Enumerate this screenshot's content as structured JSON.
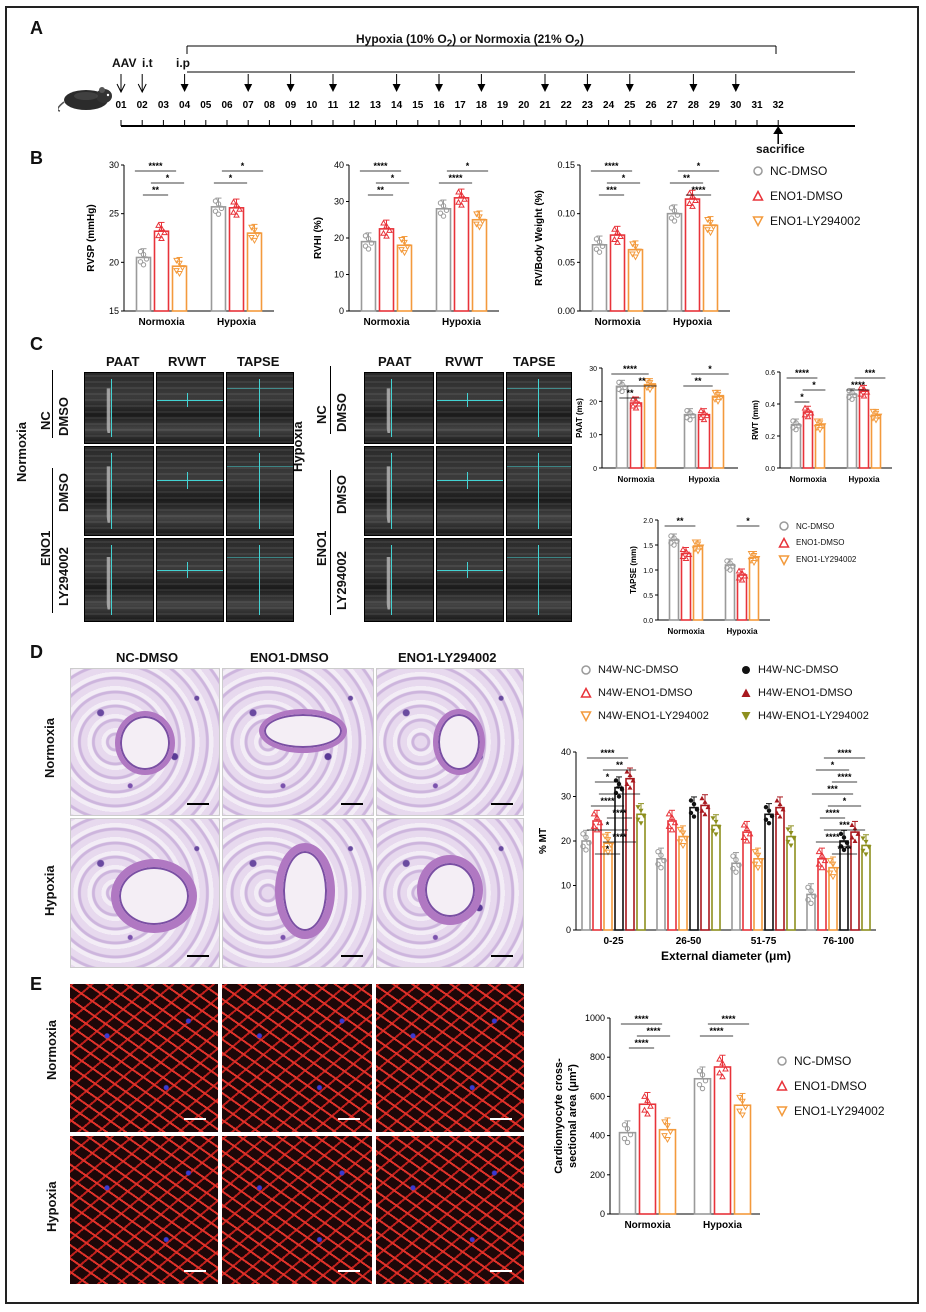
{
  "panels": {
    "A": "A",
    "B": "B",
    "C": "C",
    "D": "D",
    "E": "E"
  },
  "timeline": {
    "title": "Hypoxia (10% O",
    "title_sub1": "2",
    "title_mid": ") or Normoxia (21% O",
    "title_sub2": "2",
    "title_end": ")",
    "aav": "AAV",
    "it": "i.t",
    "ip": "i.p",
    "sacrifice": "sacrifice",
    "days": [
      "01",
      "02",
      "03",
      "04",
      "05",
      "06",
      "07",
      "08",
      "09",
      "10",
      "11",
      "12",
      "13",
      "14",
      "15",
      "16",
      "17",
      "18",
      "19",
      "20",
      "21",
      "22",
      "23",
      "24",
      "25",
      "26",
      "27",
      "28",
      "29",
      "30",
      "31",
      "32"
    ],
    "injection_days": [
      "04",
      "07",
      "09",
      "11",
      "14",
      "16",
      "18",
      "21",
      "23",
      "25",
      "28",
      "30"
    ]
  },
  "legend3": [
    "NC-DMSO",
    "ENO1-DMSO",
    "ENO1-LY294002"
  ],
  "legend6": [
    "N4W-NC-DMSO",
    "H4W-NC-DMSO",
    "N4W-ENO1-DMSO",
    "H4W-ENO1-DMSO",
    "N4W-ENO1-LY294002",
    "H4W-ENO1-LY294002"
  ],
  "colors": {
    "nc": "#9a9a9a",
    "eno1": "#e8333a",
    "ly": "#f39a3c",
    "h_nc": "#111111",
    "h_eno1": "#a8181e",
    "h_ly": "#8d8f1e"
  },
  "panelC": {
    "cols": [
      "PAAT",
      "RVWT",
      "TAPSE"
    ],
    "normoxia": "Normoxia",
    "hypoxia": "Hypoxia",
    "nc": "NC",
    "dmso": "DMSO",
    "eno1": "ENO1",
    "ly": "LY294002"
  },
  "panelD": {
    "cols": [
      "NC-DMSO",
      "ENO1-DMSO",
      "ENO1-LY294002"
    ],
    "rows": [
      "Normoxia",
      "Hypoxia"
    ]
  },
  "panelE": {
    "rows": [
      "Normoxia",
      "Hypoxia"
    ]
  },
  "chart_data": [
    {
      "id": "rvsp",
      "type": "bar",
      "ylabel": "RVSP (mmHg)",
      "categories": [
        "Normoxia",
        "Hypoxia"
      ],
      "ylim": [
        15,
        30
      ],
      "yticks": [
        15,
        20,
        25,
        30
      ],
      "series": [
        {
          "name": "NC-DMSO",
          "values": [
            20.5,
            25.7
          ]
        },
        {
          "name": "ENO1-DMSO",
          "values": [
            23.2,
            25.6
          ]
        },
        {
          "name": "ENO1-LY294002",
          "values": [
            19.6,
            23.0
          ]
        }
      ],
      "annotations": [
        "****",
        "*",
        "**",
        "*",
        "*"
      ]
    },
    {
      "id": "rvhi",
      "type": "bar",
      "ylabel": "RVHI (%)",
      "categories": [
        "Normoxia",
        "Hypoxia"
      ],
      "ylim": [
        0,
        40
      ],
      "yticks": [
        0,
        10,
        20,
        30,
        40
      ],
      "series": [
        {
          "name": "NC-DMSO",
          "values": [
            19,
            28
          ]
        },
        {
          "name": "ENO1-DMSO",
          "values": [
            22.5,
            31
          ]
        },
        {
          "name": "ENO1-LY294002",
          "values": [
            18,
            25
          ]
        }
      ],
      "annotations": [
        "****",
        "*",
        "**",
        "*",
        "****"
      ]
    },
    {
      "id": "rvbw",
      "type": "bar",
      "ylabel": "RV/Body Weight (%)",
      "categories": [
        "Normoxia",
        "Hypoxia"
      ],
      "ylim": [
        0,
        0.15
      ],
      "yticks": [
        "0.00",
        "0.05",
        "0.10",
        "0.15"
      ],
      "series": [
        {
          "name": "NC-DMSO",
          "values": [
            0.068,
            0.1
          ]
        },
        {
          "name": "ENO1-DMSO",
          "values": [
            0.078,
            0.115
          ]
        },
        {
          "name": "ENO1-LY294002",
          "values": [
            0.063,
            0.088
          ]
        }
      ],
      "annotations": [
        "****",
        "*",
        "***",
        "*",
        "**",
        "****"
      ]
    },
    {
      "id": "paat",
      "type": "bar",
      "ylabel": "PAAT (ms)",
      "categories": [
        "Normoxia",
        "Hypoxia"
      ],
      "ylim": [
        0,
        30
      ],
      "yticks": [
        0,
        10,
        20,
        30
      ],
      "series": [
        {
          "name": "NC-DMSO",
          "values": [
            24.5,
            16
          ]
        },
        {
          "name": "ENO1-DMSO",
          "values": [
            19.5,
            16
          ]
        },
        {
          "name": "ENO1-LY294002",
          "values": [
            25,
            21.5
          ]
        }
      ],
      "annotations": [
        "****",
        "**",
        "**",
        "*",
        "**"
      ]
    },
    {
      "id": "rwt",
      "type": "bar",
      "ylabel": "RWT (mm)",
      "categories": [
        "Normoxia",
        "Hypoxia"
      ],
      "ylim": [
        0,
        0.6
      ],
      "yticks": [
        "0.0",
        "0.2",
        "0.4",
        "0.6"
      ],
      "series": [
        {
          "name": "NC-DMSO",
          "values": [
            0.27,
            0.46
          ]
        },
        {
          "name": "ENO1-DMSO",
          "values": [
            0.35,
            0.48
          ]
        },
        {
          "name": "ENO1-LY294002",
          "values": [
            0.27,
            0.33
          ]
        }
      ],
      "annotations": [
        "****",
        "*",
        "*",
        "***",
        "****"
      ]
    },
    {
      "id": "tapse",
      "type": "bar",
      "ylabel": "TAPSE (mm)",
      "categories": [
        "Normoxia",
        "Hypoxia"
      ],
      "ylim": [
        0,
        2.0
      ],
      "yticks": [
        "0.0",
        "0.5",
        "1.0",
        "1.5",
        "2.0"
      ],
      "series": [
        {
          "name": "NC-DMSO",
          "values": [
            1.6,
            1.1
          ]
        },
        {
          "name": "ENO1-DMSO",
          "values": [
            1.33,
            0.9
          ]
        },
        {
          "name": "ENO1-LY294002",
          "values": [
            1.48,
            1.25
          ]
        }
      ],
      "annotations": [
        "**",
        "*"
      ]
    },
    {
      "id": "mt",
      "type": "bar",
      "ylabel": "% MT",
      "xlabel": "External diameter (μm)",
      "categories": [
        "0-25",
        "26-50",
        "51-75",
        "76-100"
      ],
      "ylim": [
        0,
        40
      ],
      "yticks": [
        0,
        10,
        20,
        30,
        40
      ],
      "series": [
        {
          "name": "N4W-NC-DMSO",
          "values": [
            20,
            16,
            15,
            8
          ]
        },
        {
          "name": "N4W-ENO1-DMSO",
          "values": [
            24.5,
            24.5,
            22,
            16
          ]
        },
        {
          "name": "N4W-ENO1-LY294002",
          "values": [
            19.5,
            21,
            16,
            14
          ]
        },
        {
          "name": "H4W-NC-DMSO",
          "values": [
            32,
            27.5,
            26,
            20
          ]
        },
        {
          "name": "H4W-ENO1-DMSO",
          "values": [
            34,
            28,
            27.5,
            22
          ]
        },
        {
          "name": "H4W-ENO1-LY294002",
          "values": [
            26,
            23.5,
            21,
            19
          ]
        }
      ],
      "annotations": [
        "****",
        "**",
        "*",
        "**",
        "****",
        "****",
        "*",
        "****",
        "*",
        "****",
        "*",
        "****",
        "***",
        "*",
        "****",
        "***",
        "****",
        "****"
      ]
    },
    {
      "id": "csa",
      "type": "bar",
      "ylabel": "Cardiomyocyte cross-sectional area (μm²)",
      "ylabel1": "Cardiomyocyte cross-",
      "ylabel2": "sectional area (μm²)",
      "categories": [
        "Normoxia",
        "Hypoxia"
      ],
      "ylim": [
        0,
        1000
      ],
      "yticks": [
        0,
        200,
        400,
        600,
        800,
        1000
      ],
      "series": [
        {
          "name": "NC-DMSO",
          "values": [
            415,
            690
          ]
        },
        {
          "name": "ENO1-DMSO",
          "values": [
            560,
            750
          ]
        },
        {
          "name": "ENO1-LY294002",
          "values": [
            430,
            555
          ]
        }
      ],
      "annotations": [
        "****",
        "****",
        "****",
        "****",
        "****"
      ]
    }
  ]
}
